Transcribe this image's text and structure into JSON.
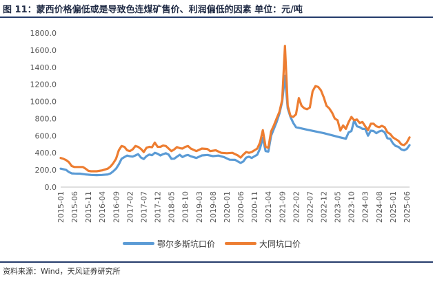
{
  "figure": {
    "title": "图 11：蒙西价格偏低或是导致色连煤矿售价、利润偏低的因素 单位：元/吨",
    "source": "资料来源：Wind，天风证券研究所"
  },
  "colors": {
    "series_0": "#5b9bd5",
    "series_1": "#ed7d31",
    "axis": "#bfbfbf"
  },
  "chart_data": {
    "type": "line",
    "title": "",
    "xlabel": "",
    "ylabel": "",
    "ylim": [
      0,
      1800
    ],
    "yticks": [
      0,
      200,
      400,
      600,
      800,
      1000,
      1200,
      1400,
      1600,
      1800
    ],
    "ytick_labels": [
      "0.0",
      "200.0",
      "400.0",
      "600.0",
      "800.0",
      "1000.0",
      "1200.0",
      "1400.0",
      "1600.0",
      "1800.0"
    ],
    "x_range": [
      "2015-01",
      "2025-07"
    ],
    "xtick_labels": [
      "2015-01",
      "2015-06",
      "2015-11",
      "2016-04",
      "2016-09",
      "2017-02",
      "2017-07",
      "2017-12",
      "2018-05",
      "2018-10",
      "2019-03",
      "2019-08",
      "2020-01",
      "2020-06",
      "2020-11",
      "2021-04",
      "2021-09",
      "2022-02",
      "2022-07",
      "2022-12",
      "2023-05",
      "2023-10",
      "2024-03",
      "2024-08",
      "2025-01",
      "2025-06"
    ],
    "grid": false,
    "legend_position": "bottom",
    "series": [
      {
        "name": "鄂尔多斯坑口价",
        "points": [
          [
            "2015-01",
            215
          ],
          [
            "2015-02",
            208
          ],
          [
            "2015-03",
            200
          ],
          [
            "2015-04",
            175
          ],
          [
            "2015-05",
            160
          ],
          [
            "2015-06",
            158
          ],
          [
            "2015-08",
            157
          ],
          [
            "2015-10",
            148
          ],
          [
            "2015-12",
            142
          ],
          [
            "2016-02",
            140
          ],
          [
            "2016-04",
            142
          ],
          [
            "2016-06",
            148
          ],
          [
            "2016-07",
            160
          ],
          [
            "2016-08",
            185
          ],
          [
            "2016-09",
            215
          ],
          [
            "2016-10",
            265
          ],
          [
            "2016-11",
            330
          ],
          [
            "2016-12",
            350
          ],
          [
            "2017-01",
            368
          ],
          [
            "2017-02",
            360
          ],
          [
            "2017-03",
            356
          ],
          [
            "2017-04",
            370
          ],
          [
            "2017-05",
            385
          ],
          [
            "2017-06",
            345
          ],
          [
            "2017-07",
            328
          ],
          [
            "2017-08",
            362
          ],
          [
            "2017-09",
            380
          ],
          [
            "2017-10",
            372
          ],
          [
            "2017-11",
            400
          ],
          [
            "2017-12",
            390
          ],
          [
            "2018-01",
            370
          ],
          [
            "2018-02",
            385
          ],
          [
            "2018-03",
            395
          ],
          [
            "2018-04",
            380
          ],
          [
            "2018-05",
            330
          ],
          [
            "2018-06",
            332
          ],
          [
            "2018-07",
            355
          ],
          [
            "2018-08",
            378
          ],
          [
            "2018-09",
            350
          ],
          [
            "2018-10",
            368
          ],
          [
            "2018-11",
            375
          ],
          [
            "2018-12",
            360
          ],
          [
            "2019-02",
            340
          ],
          [
            "2019-04",
            370
          ],
          [
            "2019-06",
            375
          ],
          [
            "2019-08",
            362
          ],
          [
            "2019-10",
            368
          ],
          [
            "2019-12",
            350
          ],
          [
            "2020-02",
            320
          ],
          [
            "2020-04",
            318
          ],
          [
            "2020-05",
            300
          ],
          [
            "2020-06",
            282
          ],
          [
            "2020-07",
            300
          ],
          [
            "2020-08",
            345
          ],
          [
            "2020-09",
            355
          ],
          [
            "2020-10",
            340
          ],
          [
            "2020-11",
            360
          ],
          [
            "2020-12",
            378
          ],
          [
            "2021-01",
            450
          ],
          [
            "2021-02",
            575
          ],
          [
            "2021-03",
            420
          ],
          [
            "2021-04",
            415
          ],
          [
            "2021-05",
            600
          ],
          [
            "2021-06",
            680
          ],
          [
            "2021-07",
            760
          ],
          [
            "2021-08",
            860
          ],
          [
            "2021-09",
            1000
          ],
          [
            "2021-10",
            1300
          ],
          [
            "2021-11",
            920
          ],
          [
            "2021-12",
            820
          ],
          [
            "2022-01",
            750
          ],
          [
            "2022-02",
            700
          ],
          [
            "2022-06",
            670
          ],
          [
            "2022-12",
            630
          ],
          [
            "2023-06",
            580
          ],
          [
            "2023-08",
            565
          ],
          [
            "2023-09",
            640
          ],
          [
            "2023-10",
            655
          ],
          [
            "2023-11",
            780
          ],
          [
            "2023-12",
            710
          ],
          [
            "2024-01",
            700
          ],
          [
            "2024-02",
            680
          ],
          [
            "2024-03",
            680
          ],
          [
            "2024-04",
            600
          ],
          [
            "2024-05",
            660
          ],
          [
            "2024-06",
            655
          ],
          [
            "2024-07",
            630
          ],
          [
            "2024-08",
            650
          ],
          [
            "2024-09",
            660
          ],
          [
            "2024-10",
            640
          ],
          [
            "2024-11",
            570
          ],
          [
            "2024-12",
            565
          ],
          [
            "2025-01",
            510
          ],
          [
            "2025-02",
            480
          ],
          [
            "2025-03",
            470
          ],
          [
            "2025-04",
            440
          ],
          [
            "2025-05",
            430
          ],
          [
            "2025-06",
            445
          ],
          [
            "2025-07",
            490
          ]
        ]
      },
      {
        "name": "大同坑口价",
        "points": [
          [
            "2015-01",
            340
          ],
          [
            "2015-02",
            330
          ],
          [
            "2015-03",
            315
          ],
          [
            "2015-04",
            290
          ],
          [
            "2015-05",
            245
          ],
          [
            "2015-06",
            235
          ],
          [
            "2015-08",
            235
          ],
          [
            "2015-09",
            235
          ],
          [
            "2015-10",
            215
          ],
          [
            "2015-11",
            190
          ],
          [
            "2015-12",
            185
          ],
          [
            "2016-02",
            185
          ],
          [
            "2016-04",
            195
          ],
          [
            "2016-06",
            215
          ],
          [
            "2016-07",
            240
          ],
          [
            "2016-08",
            280
          ],
          [
            "2016-09",
            330
          ],
          [
            "2016-10",
            430
          ],
          [
            "2016-11",
            480
          ],
          [
            "2016-12",
            470
          ],
          [
            "2017-01",
            430
          ],
          [
            "2017-02",
            420
          ],
          [
            "2017-03",
            440
          ],
          [
            "2017-04",
            480
          ],
          [
            "2017-05",
            470
          ],
          [
            "2017-06",
            445
          ],
          [
            "2017-07",
            410
          ],
          [
            "2017-08",
            460
          ],
          [
            "2017-09",
            470
          ],
          [
            "2017-10",
            465
          ],
          [
            "2017-11",
            520
          ],
          [
            "2017-12",
            470
          ],
          [
            "2018-01",
            470
          ],
          [
            "2018-02",
            485
          ],
          [
            "2018-03",
            480
          ],
          [
            "2018-04",
            450
          ],
          [
            "2018-05",
            420
          ],
          [
            "2018-06",
            440
          ],
          [
            "2018-07",
            468
          ],
          [
            "2018-08",
            455
          ],
          [
            "2018-09",
            450
          ],
          [
            "2018-10",
            470
          ],
          [
            "2018-11",
            480
          ],
          [
            "2018-12",
            450
          ],
          [
            "2019-02",
            420
          ],
          [
            "2019-04",
            450
          ],
          [
            "2019-06",
            445
          ],
          [
            "2019-07",
            420
          ],
          [
            "2019-09",
            430
          ],
          [
            "2019-11",
            400
          ],
          [
            "2020-01",
            395
          ],
          [
            "2020-03",
            400
          ],
          [
            "2020-05",
            370
          ],
          [
            "2020-06",
            345
          ],
          [
            "2020-07",
            380
          ],
          [
            "2020-08",
            410
          ],
          [
            "2020-09",
            400
          ],
          [
            "2020-10",
            410
          ],
          [
            "2020-11",
            430
          ],
          [
            "2020-12",
            450
          ],
          [
            "2021-01",
            520
          ],
          [
            "2021-02",
            665
          ],
          [
            "2021-03",
            470
          ],
          [
            "2021-04",
            460
          ],
          [
            "2021-05",
            650
          ],
          [
            "2021-06",
            720
          ],
          [
            "2021-07",
            800
          ],
          [
            "2021-08",
            880
          ],
          [
            "2021-09",
            1020
          ],
          [
            "2021-10",
            1650
          ],
          [
            "2021-11",
            950
          ],
          [
            "2021-12",
            830
          ],
          [
            "2022-01",
            820
          ],
          [
            "2022-02",
            850
          ],
          [
            "2022-03",
            1040
          ],
          [
            "2022-04",
            950
          ],
          [
            "2022-05",
            920
          ],
          [
            "2022-06",
            910
          ],
          [
            "2022-07",
            930
          ],
          [
            "2022-08",
            1120
          ],
          [
            "2022-09",
            1180
          ],
          [
            "2022-10",
            1170
          ],
          [
            "2022-11",
            1130
          ],
          [
            "2022-12",
            1050
          ],
          [
            "2023-01",
            950
          ],
          [
            "2023-02",
            920
          ],
          [
            "2023-03",
            870
          ],
          [
            "2023-04",
            800
          ],
          [
            "2023-05",
            780
          ],
          [
            "2023-06",
            660
          ],
          [
            "2023-07",
            720
          ],
          [
            "2023-08",
            680
          ],
          [
            "2023-09",
            760
          ],
          [
            "2023-10",
            820
          ],
          [
            "2023-11",
            780
          ],
          [
            "2023-12",
            790
          ],
          [
            "2024-01",
            750
          ],
          [
            "2024-02",
            760
          ],
          [
            "2024-03",
            710
          ],
          [
            "2024-04",
            665
          ],
          [
            "2024-05",
            740
          ],
          [
            "2024-06",
            740
          ],
          [
            "2024-07",
            710
          ],
          [
            "2024-08",
            700
          ],
          [
            "2024-09",
            715
          ],
          [
            "2024-10",
            700
          ],
          [
            "2024-11",
            640
          ],
          [
            "2024-12",
            620
          ],
          [
            "2025-01",
            580
          ],
          [
            "2025-02",
            560
          ],
          [
            "2025-03",
            540
          ],
          [
            "2025-04",
            500
          ],
          [
            "2025-05",
            490
          ],
          [
            "2025-06",
            520
          ],
          [
            "2025-07",
            580
          ]
        ]
      }
    ]
  }
}
